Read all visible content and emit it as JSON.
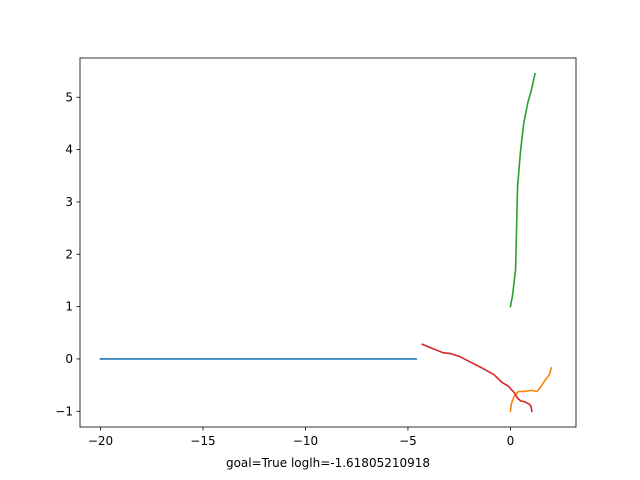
{
  "chart_data": {
    "type": "line",
    "title": "",
    "xlabel": "goal=True loglh=-1.61805210918",
    "ylabel": "",
    "xlim": [
      -21.0,
      3.2
    ],
    "ylim": [
      -1.3,
      5.75
    ],
    "grid": false,
    "legend": "none",
    "x_ticks": [
      -20,
      -15,
      -10,
      -5,
      0
    ],
    "x_tick_labels": [
      "−20",
      "−15",
      "−10",
      "−5",
      "0"
    ],
    "y_ticks": [
      -1,
      0,
      1,
      2,
      3,
      4,
      5
    ],
    "y_tick_labels": [
      "−1",
      "0",
      "1",
      "2",
      "3",
      "4",
      "5"
    ],
    "series": [
      {
        "color": "#1f77b4",
        "x": [
          -20.0,
          -4.6
        ],
        "y": [
          0.0,
          0.0
        ]
      },
      {
        "color": "#ff7f0e",
        "x": [
          0.0,
          0.05,
          0.2,
          0.4,
          0.7,
          1.0,
          1.3,
          1.5,
          1.7,
          1.9,
          2.0
        ],
        "y": [
          -1.0,
          -0.85,
          -0.7,
          -0.62,
          -0.62,
          -0.6,
          -0.62,
          -0.52,
          -0.4,
          -0.3,
          -0.17
        ]
      },
      {
        "color": "#2ca02c",
        "x": [
          0.0,
          0.1,
          0.25,
          0.3,
          0.35,
          0.5,
          0.65,
          0.85,
          1.0,
          1.2
        ],
        "y": [
          1.0,
          1.2,
          1.7,
          2.5,
          3.3,
          4.0,
          4.5,
          4.9,
          5.1,
          5.45
        ]
      },
      {
        "color": "#d62728",
        "x": [
          -4.3,
          -3.8,
          -3.3,
          -2.9,
          -2.5,
          -2.0,
          -1.4,
          -0.8,
          -0.4,
          -0.1,
          0.2,
          0.35,
          0.5,
          0.7,
          0.9,
          1.0,
          1.05
        ],
        "y": [
          0.28,
          0.2,
          0.12,
          0.1,
          0.05,
          -0.05,
          -0.17,
          -0.3,
          -0.45,
          -0.52,
          -0.65,
          -0.75,
          -0.8,
          -0.82,
          -0.86,
          -0.9,
          -1.0
        ]
      }
    ]
  }
}
